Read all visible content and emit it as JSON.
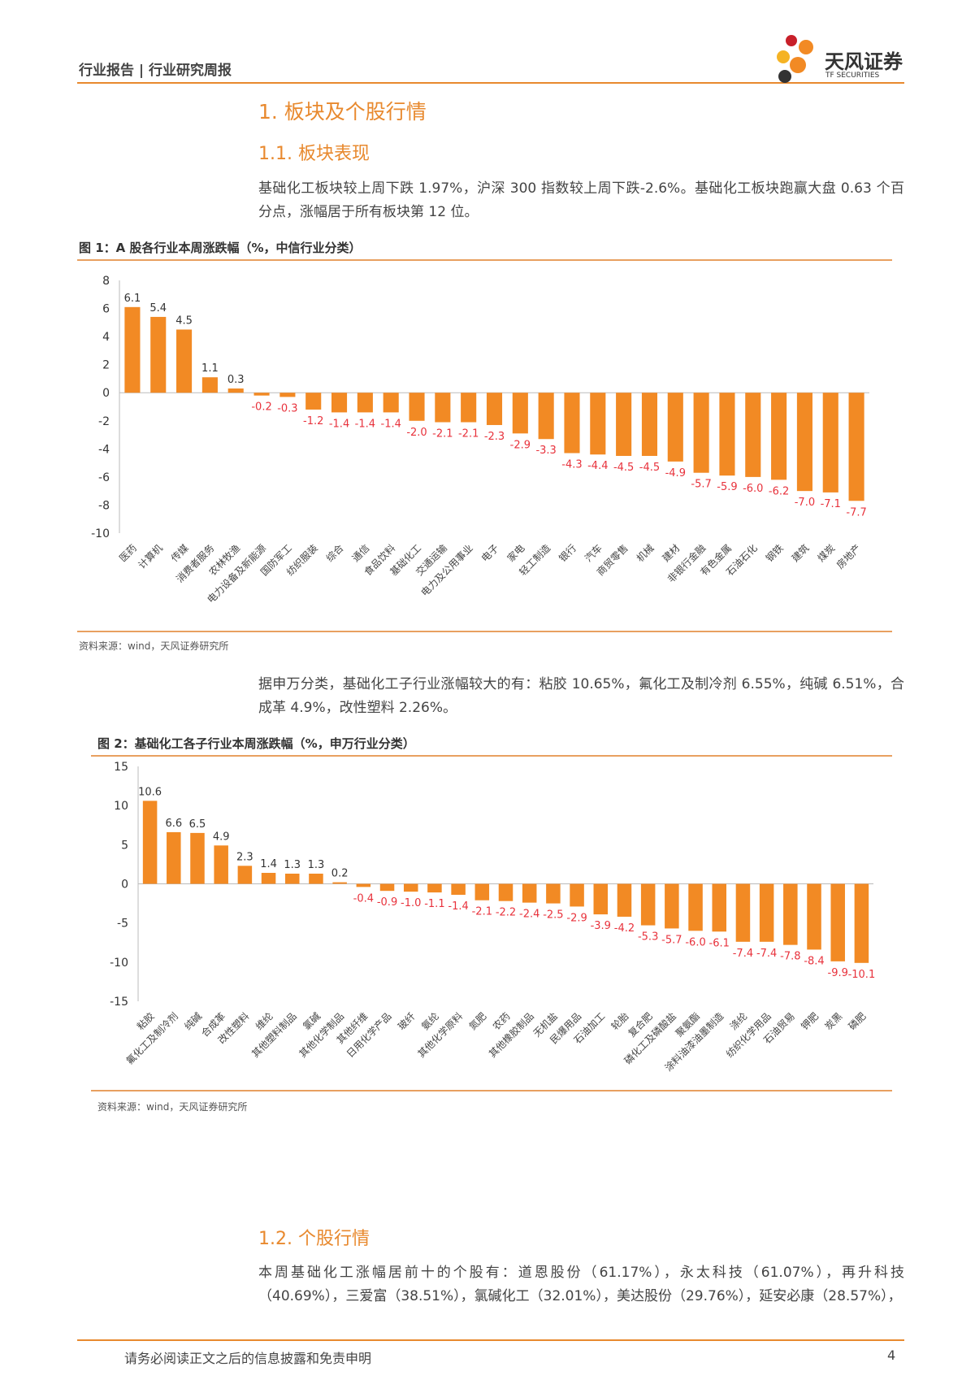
{
  "header": {
    "report_type": "行业报告 | 行业研究周报",
    "logo_name": "天风证券",
    "logo_sub": "TF SECURITIES"
  },
  "section1": {
    "title": "1. 板块及个股行情",
    "sub1": "1.1. 板块表现",
    "para1": "基础化工板块较上周下跌 1.97%，沪深 300 指数较上周下跌-2.6%。基础化工板块跑赢大盘 0.63 个百分点，涨幅居于所有板块第 12 位。",
    "para2": "据申万分类，基础化工子行业涨幅较大的有：粘胶 10.65%，氟化工及制冷剂 6.55%，纯碱 6.51%，合成革 4.9%，改性塑料 2.26%。",
    "sub2": "1.2. 个股行情",
    "para3": "本周基础化工涨幅居前十的个股有：道恩股份（61.17%），永太科技（61.07%），再升科技（40.69%），三爱富（38.51%），氯碱化工（32.01%），美达股份（29.76%），延安必康（28.57%），"
  },
  "figures": [
    {
      "title": "图 1：A 股各行业本周涨跌幅（%，中信行业分类）",
      "source": "资料来源：wind，天风证券研究所"
    },
    {
      "title": "图 2：基础化工各子行业本周涨跌幅（%，申万行业分类）",
      "source": "资料来源：wind，天风证券研究所"
    }
  ],
  "footer": {
    "disclaimer": "请务必阅读正文之后的信息披露和免责申明",
    "page": "4"
  },
  "colors": {
    "accent": "#e8892e",
    "bar": "#f28a24",
    "negative_label": "#e8323c"
  },
  "chart_data": [
    {
      "type": "bar",
      "ylim": [
        -10,
        8
      ],
      "yticks": [
        8,
        6,
        4,
        2,
        0,
        -2,
        -4,
        -6,
        -8,
        -10
      ],
      "grid": false,
      "categories": [
        "医药",
        "计算机",
        "传媒",
        "消费者服务",
        "农林牧渔",
        "电力设备及新能源",
        "国防军工",
        "纺织服装",
        "综合",
        "通信",
        "食品饮料",
        "基础化工",
        "交通运输",
        "电力及公用事业",
        "电子",
        "家电",
        "轻工制造",
        "银行",
        "汽车",
        "商贸零售",
        "机械",
        "建材",
        "非银行金融",
        "有色金属",
        "石油石化",
        "钢铁",
        "建筑",
        "煤炭",
        "房地产"
      ],
      "values": [
        6.1,
        5.4,
        4.5,
        1.1,
        0.3,
        -0.2,
        -0.3,
        -1.2,
        -1.4,
        -1.4,
        -1.4,
        -2.0,
        -2.1,
        -2.1,
        -2.3,
        -2.9,
        -3.3,
        -4.3,
        -4.4,
        -4.5,
        -4.5,
        -4.9,
        -5.7,
        -5.9,
        -6.0,
        -6.2,
        -7.0,
        -7.1,
        -7.7
      ]
    },
    {
      "type": "bar",
      "ylim": [
        -15,
        15
      ],
      "yticks": [
        15,
        10,
        5,
        0,
        -5,
        -10,
        -15
      ],
      "grid": false,
      "categories": [
        "粘胶",
        "氟化工及制冷剂",
        "纯碱",
        "合成革",
        "改性塑料",
        "维纶",
        "其他塑料制品",
        "氯碱",
        "其他化学制品",
        "其他纤维",
        "日用化学产品",
        "玻纤",
        "氨纶",
        "其他化学原料",
        "氮肥",
        "农药",
        "其他橡胶制品",
        "无机盐",
        "民爆用品",
        "石油加工",
        "轮胎",
        "复合肥",
        "磷化工及磷酸盐",
        "聚氨酯",
        "涂料油漆油墨制造",
        "涤纶",
        "纺织化学用品",
        "石油贸易",
        "钾肥",
        "炭黑",
        "磷肥"
      ],
      "values": [
        10.6,
        6.6,
        6.5,
        4.9,
        2.3,
        1.4,
        1.3,
        1.3,
        0.2,
        -0.4,
        -0.9,
        -1.0,
        -1.1,
        -1.4,
        -2.1,
        -2.2,
        -2.4,
        -2.5,
        -2.9,
        -3.9,
        -4.2,
        -5.3,
        -5.7,
        -6.0,
        -6.1,
        -7.4,
        -7.4,
        -7.8,
        -8.4,
        -9.9,
        -10.1
      ]
    }
  ]
}
